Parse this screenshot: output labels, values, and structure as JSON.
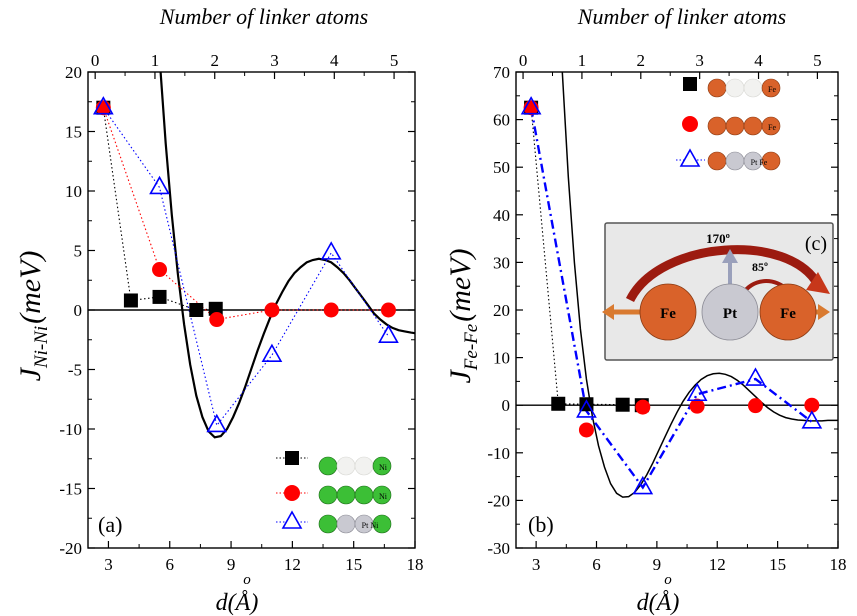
{
  "figure": {
    "shared": {
      "top_axis_label": "Number of linker atoms",
      "x_axis_label": "d(Å)",
      "x_axis_label_superscript": "o",
      "top_ticks": [
        "0",
        "1",
        "2",
        "3",
        "4",
        "5"
      ],
      "x_ticks": [
        "3",
        "6",
        "9",
        "12",
        "15",
        "18"
      ],
      "colors": {
        "square": "#000000",
        "circle": "#ff0000",
        "triangle": "#0000ff",
        "fit": "#000000"
      }
    }
  },
  "chart_data": [
    {
      "type": "scatter",
      "panel_label": "(a)",
      "ylabel_main": "J",
      "ylabel_sub": "Ni-Ni",
      "ylabel_unit": "(meV)",
      "xlim": [
        2,
        18
      ],
      "ylim": [
        -20,
        20
      ],
      "y_ticks": [
        "20",
        "15",
        "10",
        "5",
        "0",
        "-5",
        "-10",
        "-15",
        "-20"
      ],
      "top_axis": {
        "min": -0.12,
        "max": 5.35,
        "ticks": [
          0,
          1,
          2,
          3,
          4,
          5
        ]
      },
      "legend_badges": [
        "Ni",
        "Ni",
        "Pt Ni"
      ],
      "series": [
        {
          "marker": "square",
          "color": "#000000",
          "line": "dotted",
          "x": [
            2.75,
            4.1,
            5.5,
            7.3,
            8.25
          ],
          "y": [
            17.0,
            0.8,
            1.1,
            0.0,
            0.1
          ]
        },
        {
          "marker": "circle",
          "color": "#ff0000",
          "line": "dotted",
          "x": [
            2.75,
            5.5,
            8.3,
            11.0,
            13.9,
            16.7
          ],
          "y": [
            17.0,
            3.4,
            -0.8,
            0.0,
            0.0,
            0.0
          ]
        },
        {
          "marker": "triangle",
          "color": "#0000ff",
          "line": "dotted",
          "x": [
            2.75,
            5.5,
            8.3,
            11.0,
            13.9,
            16.7
          ],
          "y": [
            17.0,
            10.3,
            -9.7,
            -3.8,
            4.8,
            -2.2
          ]
        }
      ],
      "fit_curve": {
        "x": [
          5.55,
          5.8,
          6.1,
          6.4,
          6.7,
          7.0,
          7.3,
          7.6,
          7.9,
          8.2,
          8.5,
          8.8,
          9.1,
          9.4,
          9.7,
          10.0,
          10.3,
          10.6,
          10.9,
          11.2,
          11.5,
          11.8,
          12.1,
          12.4,
          12.7,
          13.0,
          13.3,
          13.6,
          13.9,
          14.2,
          14.5,
          14.8,
          15.1,
          15.4,
          15.7,
          16.0,
          16.3,
          16.6,
          16.9,
          17.2,
          17.5,
          17.8,
          18.0
        ],
        "y": [
          20.0,
          14.0,
          8.0,
          3.0,
          -1.2,
          -4.6,
          -7.2,
          -9.0,
          -10.2,
          -10.7,
          -10.6,
          -10.0,
          -9.0,
          -7.8,
          -6.4,
          -4.9,
          -3.4,
          -2.0,
          -0.7,
          0.5,
          1.5,
          2.4,
          3.1,
          3.6,
          4.0,
          4.2,
          4.3,
          4.2,
          4.0,
          3.6,
          3.1,
          2.5,
          1.8,
          1.1,
          0.4,
          -0.3,
          -0.8,
          -1.2,
          -1.5,
          -1.7,
          -1.8,
          -1.9,
          -1.95
        ]
      },
      "zero_line": true
    },
    {
      "type": "scatter",
      "panel_label": "(b)",
      "inset_label": "(c)",
      "inset_texts": {
        "angle1": "170º",
        "angle2": "85º",
        "left": "Fe",
        "center": "Pt",
        "right": "Fe"
      },
      "ylabel_main": "J",
      "ylabel_sub": "Fe-Fe",
      "ylabel_unit": "(meV)",
      "xlim": [
        2,
        18
      ],
      "ylim": [
        -30,
        70
      ],
      "y_ticks": [
        "70",
        "60",
        "50",
        "40",
        "30",
        "20",
        "10",
        "0",
        "-10",
        "-20",
        "-30"
      ],
      "top_axis": {
        "min": -0.12,
        "max": 5.35,
        "ticks": [
          0,
          1,
          2,
          3,
          4,
          5
        ]
      },
      "legend_badges": [
        "Fe",
        "Fe",
        "Pt Fe"
      ],
      "series": [
        {
          "marker": "square",
          "color": "#000000",
          "line": "dotted",
          "x": [
            2.75,
            4.1,
            5.5,
            7.3,
            8.25
          ],
          "y": [
            62.5,
            0.3,
            0.2,
            0.1,
            0.0
          ]
        },
        {
          "marker": "circle",
          "color": "#ff0000",
          "line": "none",
          "x": [
            2.75,
            5.5,
            8.3,
            11.0,
            13.9,
            16.7
          ],
          "y": [
            62.5,
            -5.2,
            -0.4,
            -0.2,
            -0.1,
            0.0
          ]
        },
        {
          "marker": "triangle",
          "color": "#0000ff",
          "line": "dashdot",
          "x": [
            2.75,
            5.5,
            8.3,
            11.0,
            13.9,
            16.7
          ],
          "y": [
            62.5,
            -1.2,
            -17.3,
            2.3,
            5.5,
            -3.5
          ]
        }
      ],
      "fit_curve": {
        "x": [
          4.3,
          4.6,
          4.9,
          5.2,
          5.5,
          5.8,
          6.1,
          6.4,
          6.7,
          7.0,
          7.3,
          7.6,
          7.9,
          8.2,
          8.5,
          8.8,
          9.1,
          9.4,
          9.7,
          10.0,
          10.3,
          10.6,
          10.9,
          11.2,
          11.5,
          11.8,
          12.1,
          12.4,
          12.7,
          13.0,
          13.3,
          13.6,
          13.9,
          14.2,
          14.5,
          14.8,
          15.1,
          15.4,
          15.7,
          16.0,
          16.3,
          16.6,
          16.9,
          17.2,
          17.5,
          17.8,
          18.0
        ],
        "y": [
          70.0,
          48.0,
          30.0,
          16.0,
          5.5,
          -2.5,
          -8.5,
          -13.0,
          -16.5,
          -18.5,
          -19.3,
          -19.2,
          -18.3,
          -16.7,
          -14.6,
          -12.1,
          -9.4,
          -6.7,
          -4.0,
          -1.5,
          0.8,
          2.7,
          4.2,
          5.4,
          6.2,
          6.6,
          6.7,
          6.5,
          6.0,
          5.2,
          4.2,
          3.0,
          1.8,
          0.6,
          -0.5,
          -1.4,
          -2.1,
          -2.6,
          -2.9,
          -3.1,
          -3.2,
          -3.3,
          -3.3,
          -3.3,
          -3.2,
          -3.2,
          -3.2
        ]
      },
      "zero_line": true
    }
  ]
}
